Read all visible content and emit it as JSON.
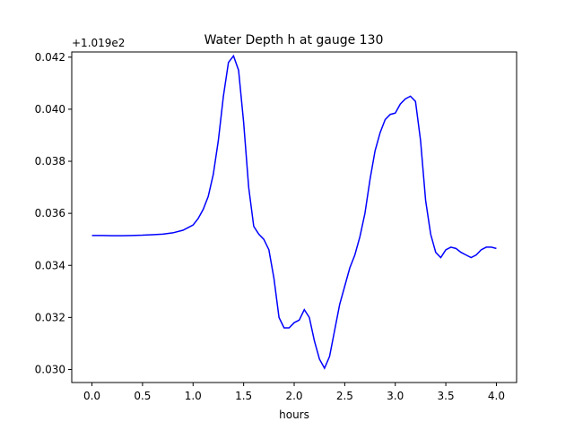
{
  "chart_data": {
    "type": "line",
    "title": "Water Depth h at gauge 130",
    "xlabel": "hours",
    "ylabel": "",
    "y_offset_label": "+1.019e2",
    "y_offset": 101.9,
    "xlim": [
      -0.2,
      4.2
    ],
    "ylim": [
      0.0295,
      0.0422
    ],
    "x_ticks": [
      0.0,
      0.5,
      1.0,
      1.5,
      2.0,
      2.5,
      3.0,
      3.5,
      4.0
    ],
    "x_tick_labels": [
      "0.0",
      "0.5",
      "1.0",
      "1.5",
      "2.0",
      "2.5",
      "3.0",
      "3.5",
      "4.0"
    ],
    "y_ticks": [
      0.03,
      0.032,
      0.034,
      0.036,
      0.038,
      0.04,
      0.042
    ],
    "y_tick_labels": [
      "0.030",
      "0.032",
      "0.034",
      "0.036",
      "0.038",
      "0.040",
      "0.042"
    ],
    "grid": false,
    "series": [
      {
        "color": "#0000ff",
        "x": [
          0.0,
          0.1,
          0.2,
          0.3,
          0.4,
          0.5,
          0.6,
          0.7,
          0.8,
          0.9,
          1.0,
          1.05,
          1.1,
          1.15,
          1.2,
          1.25,
          1.3,
          1.35,
          1.4,
          1.45,
          1.5,
          1.55,
          1.6,
          1.65,
          1.7,
          1.75,
          1.8,
          1.85,
          1.9,
          1.95,
          2.0,
          2.05,
          2.1,
          2.15,
          2.2,
          2.25,
          2.3,
          2.35,
          2.4,
          2.45,
          2.5,
          2.55,
          2.6,
          2.65,
          2.7,
          2.75,
          2.8,
          2.85,
          2.9,
          2.95,
          3.0,
          3.05,
          3.1,
          3.15,
          3.2,
          3.25,
          3.3,
          3.35,
          3.4,
          3.45,
          3.5,
          3.55,
          3.6,
          3.65,
          3.7,
          3.75,
          3.8,
          3.85,
          3.9,
          3.95,
          4.0
        ],
        "y": [
          0.03515,
          0.03515,
          0.03514,
          0.03514,
          0.03515,
          0.03516,
          0.03518,
          0.0352,
          0.03525,
          0.03535,
          0.03555,
          0.0358,
          0.03615,
          0.03665,
          0.0375,
          0.0388,
          0.0405,
          0.0418,
          0.04205,
          0.0415,
          0.0395,
          0.037,
          0.0355,
          0.0352,
          0.035,
          0.0346,
          0.0335,
          0.032,
          0.0316,
          0.0316,
          0.0318,
          0.0319,
          0.0323,
          0.032,
          0.0311,
          0.0304,
          0.03005,
          0.0305,
          0.0315,
          0.0325,
          0.0332,
          0.0339,
          0.0344,
          0.0351,
          0.036,
          0.0373,
          0.0384,
          0.0391,
          0.0396,
          0.0398,
          0.03985,
          0.0402,
          0.0404,
          0.0405,
          0.0403,
          0.0388,
          0.0365,
          0.0352,
          0.0345,
          0.0343,
          0.0346,
          0.0347,
          0.03465,
          0.0345,
          0.0344,
          0.0343,
          0.0344,
          0.0346,
          0.0347,
          0.0347,
          0.03465
        ]
      }
    ]
  }
}
